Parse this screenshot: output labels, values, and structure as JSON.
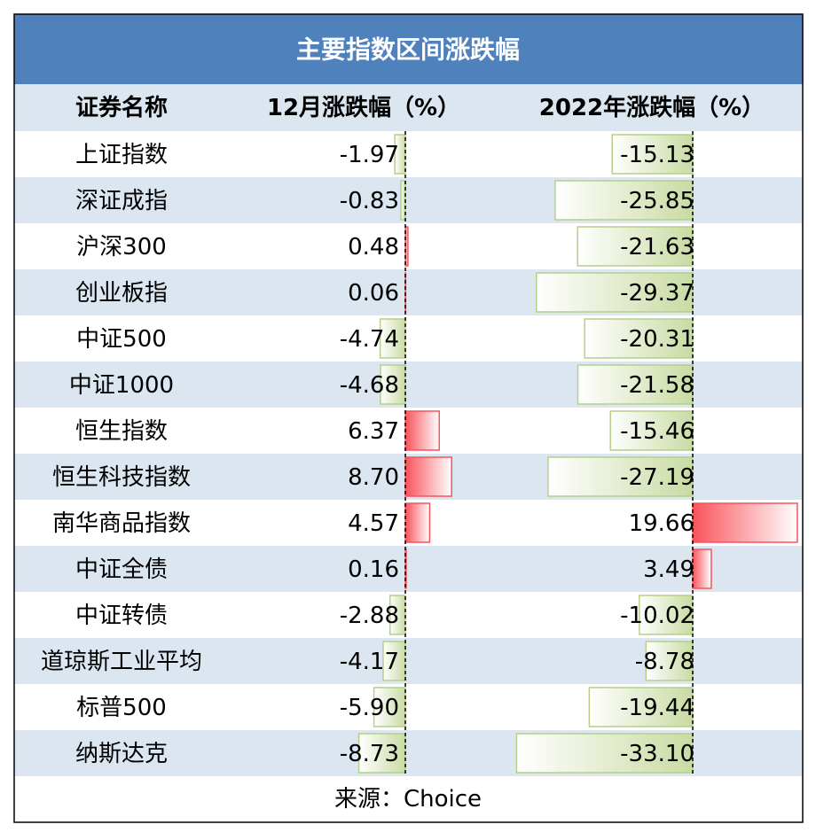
{
  "header": {
    "title": "主要指数区间涨跌幅"
  },
  "table": {
    "columns": [
      "证券名称",
      "12月涨跌幅（%）",
      "2022年涨跌幅（%）"
    ],
    "rows": [
      [
        "上证指数",
        "-1.97",
        "-15.13"
      ],
      [
        "深证成指",
        "-0.83",
        "-25.85"
      ],
      [
        "沪深300",
        "0.48",
        "-21.63"
      ],
      [
        "创业板指",
        "0.06",
        "-29.37"
      ],
      [
        "中证500",
        "-4.74",
        "-20.31"
      ],
      [
        "中证1000",
        "-4.68",
        "-21.58"
      ],
      [
        "恒生指数",
        "6.37",
        "-15.46"
      ],
      [
        "恒生科技指数",
        "8.70",
        "-27.19"
      ],
      [
        "南华商品指数",
        "4.57",
        "19.66"
      ],
      [
        "中证全债",
        "0.16",
        "3.49"
      ],
      [
        "中证转债",
        "-2.88",
        "-10.02"
      ],
      [
        "道琼斯工业平均",
        "-4.17",
        "-8.78"
      ],
      [
        "标普500",
        "-5.90",
        "-19.44"
      ],
      [
        "纳斯达克",
        "-8.73",
        "-33.10"
      ]
    ]
  },
  "source": "来源：Choice"
}
